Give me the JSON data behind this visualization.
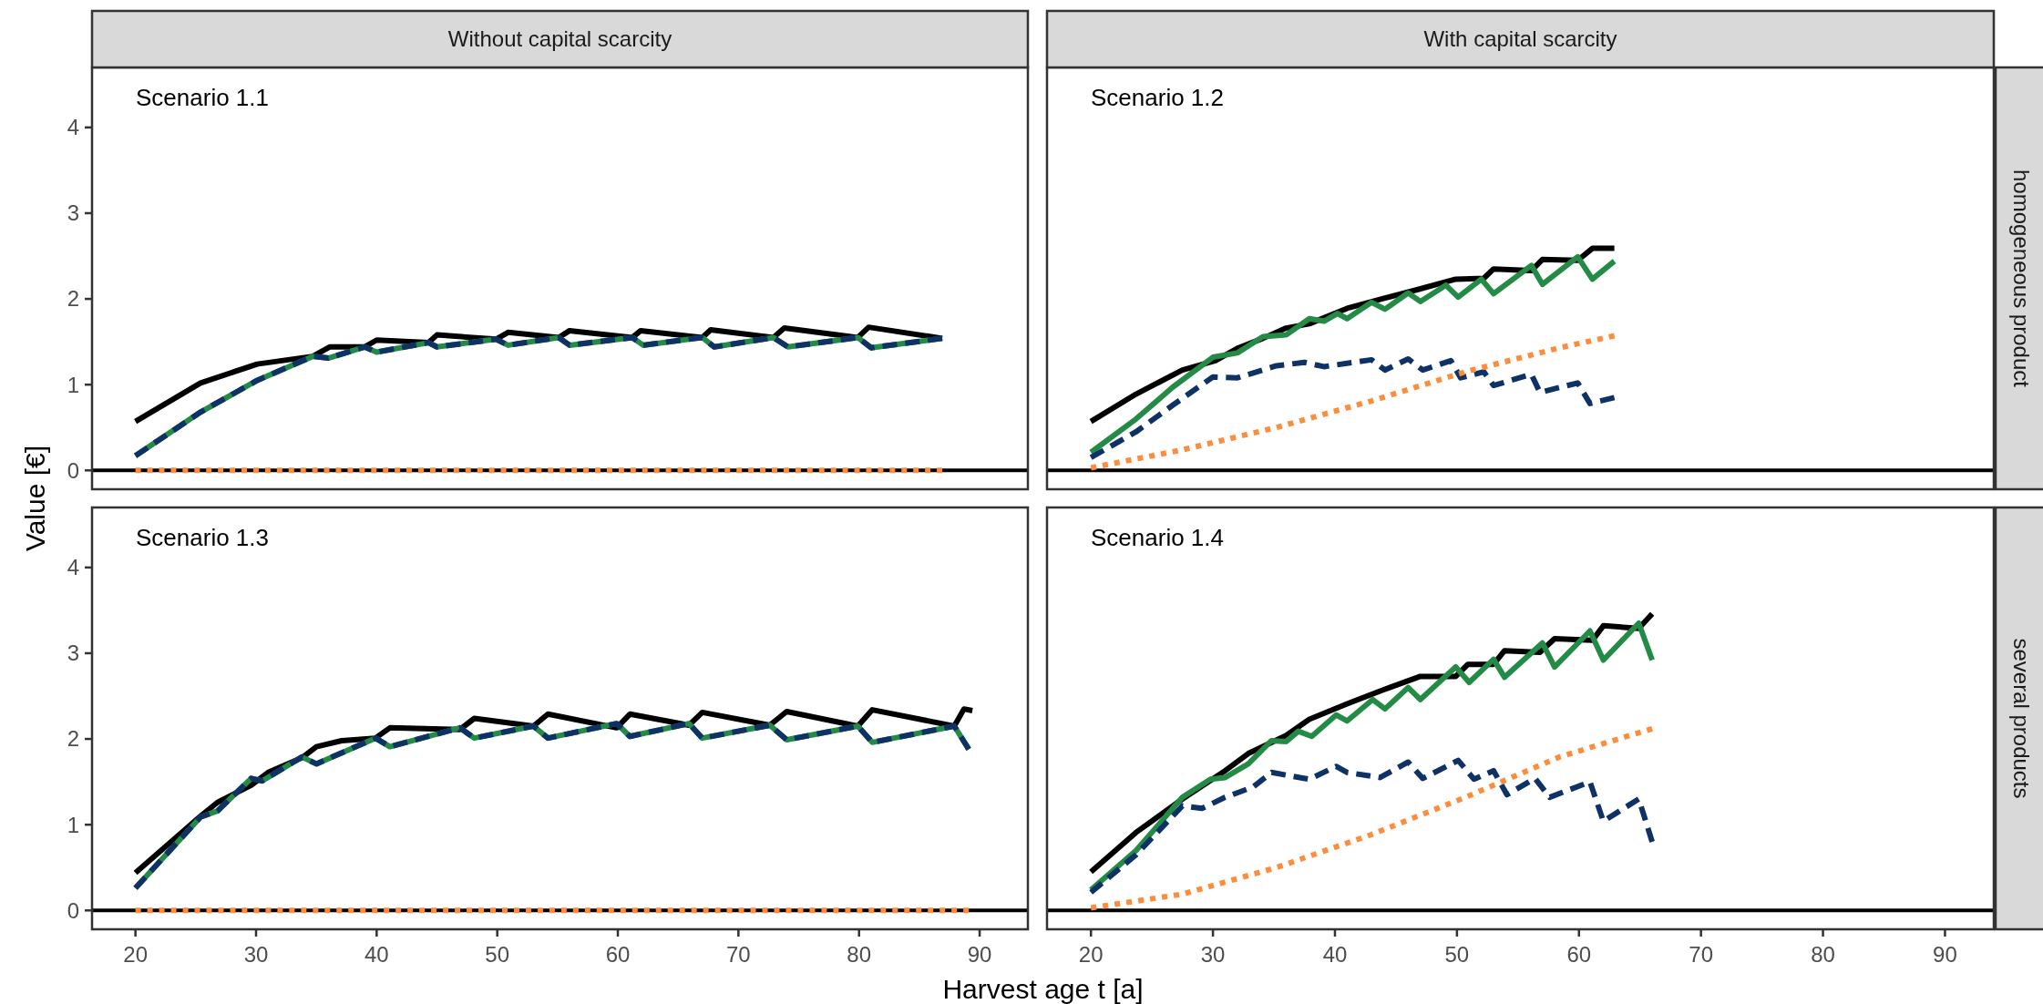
{
  "chart_data": [
    {
      "type": "line",
      "title": "Without capital scarcity",
      "ylabel": "Value [€]",
      "annotations": [
        "Scenario 1.1"
      ],
      "xlim": [
        16.4,
        94
      ],
      "ylim": [
        -0.22,
        4.7
      ],
      "yticks": [
        0,
        1,
        2,
        3,
        4
      ],
      "tick_labels": "y",
      "ref_lines": [
        {
          "axis": "y",
          "value": 0,
          "color": "#000000"
        }
      ],
      "series": [
        {
          "color": "#000000",
          "line_style": "solid",
          "x": [
            20,
            25.4,
            30.1,
            34.7,
            36.1,
            39.0,
            40.0,
            44.3,
            45.0,
            49.9,
            50.9,
            55.1,
            56.0,
            61.2,
            61.9,
            67.0,
            67.7,
            72.9,
            73.8,
            79.9,
            80.8,
            86.9
          ],
          "values": [
            0.57,
            1.02,
            1.24,
            1.33,
            1.44,
            1.44,
            1.52,
            1.49,
            1.58,
            1.53,
            1.61,
            1.55,
            1.63,
            1.55,
            1.63,
            1.55,
            1.64,
            1.55,
            1.66,
            1.55,
            1.67,
            1.54
          ]
        },
        {
          "color": "#238b45",
          "line_style": "solid",
          "x": [
            20,
            25.4,
            30.1,
            34.7,
            36.0,
            39.0,
            40.0,
            44.3,
            45.0,
            49.9,
            50.9,
            55.1,
            56.0,
            61.2,
            62.1,
            67.0,
            68.0,
            72.9,
            74.1,
            79.9,
            81.0,
            86.9
          ],
          "values": [
            0.17,
            0.68,
            1.05,
            1.33,
            1.31,
            1.44,
            1.38,
            1.49,
            1.44,
            1.53,
            1.46,
            1.55,
            1.46,
            1.55,
            1.46,
            1.55,
            1.44,
            1.55,
            1.44,
            1.55,
            1.43,
            1.54
          ]
        },
        {
          "color": "#0e3166",
          "line_style": "dashed",
          "x": [
            20,
            25.4,
            30.1,
            34.7,
            36.0,
            39.0,
            40.0,
            44.3,
            45.0,
            49.9,
            50.9,
            55.1,
            56.0,
            61.2,
            62.1,
            67.0,
            68.0,
            72.9,
            74.1,
            79.9,
            81.0,
            86.9
          ],
          "values": [
            0.17,
            0.68,
            1.05,
            1.33,
            1.31,
            1.44,
            1.38,
            1.49,
            1.44,
            1.53,
            1.46,
            1.55,
            1.46,
            1.55,
            1.46,
            1.55,
            1.44,
            1.55,
            1.44,
            1.55,
            1.43,
            1.54
          ]
        },
        {
          "color": "#fd8d3c",
          "line_style": "dotted",
          "x": [
            20,
            86.9
          ],
          "values": [
            0,
            0
          ]
        }
      ]
    },
    {
      "type": "line",
      "title": "With capital scarcity",
      "y2label": "homogeneous product",
      "annotations": [
        "Scenario 1.2"
      ],
      "xlim": [
        16.4,
        94
      ],
      "ylim": [
        -0.22,
        4.7
      ],
      "tick_labels": false,
      "ref_lines": [
        {
          "axis": "y",
          "value": 0,
          "color": "#000000"
        }
      ],
      "series": [
        {
          "color": "#000000",
          "line_style": "solid",
          "x": [
            20,
            23.7,
            27.5,
            30.2,
            32.1,
            34.1,
            36,
            37.9,
            41,
            44.1,
            46.8,
            49.9,
            52.2,
            53,
            56.1,
            57,
            59.9,
            61.1,
            62.9
          ],
          "values": [
            0.57,
            0.89,
            1.17,
            1.28,
            1.43,
            1.54,
            1.66,
            1.71,
            1.89,
            2.01,
            2.11,
            2.23,
            2.24,
            2.35,
            2.33,
            2.46,
            2.45,
            2.59,
            2.59
          ]
        },
        {
          "color": "#238b45",
          "line_style": "solid",
          "x": [
            20,
            23.7,
            26.7,
            30,
            32,
            34.1,
            36,
            37.9,
            39.1,
            40.2,
            41,
            43,
            44.1,
            46,
            47,
            49.1,
            50.1,
            52,
            53,
            56.1,
            57,
            59.9,
            61.1,
            62.9
          ],
          "values": [
            0.21,
            0.6,
            0.97,
            1.32,
            1.37,
            1.56,
            1.58,
            1.77,
            1.74,
            1.83,
            1.77,
            1.96,
            1.88,
            2.07,
            1.97,
            2.16,
            2.02,
            2.23,
            2.06,
            2.39,
            2.17,
            2.49,
            2.23,
            2.44
          ]
        },
        {
          "color": "#0e3166",
          "line_style": "dashed",
          "x": [
            20,
            23.7,
            26.7,
            30,
            32,
            35.2,
            37.5,
            39.1,
            43,
            44.1,
            46,
            47.2,
            49.5,
            50.3,
            52.2,
            53,
            56.1,
            56.8,
            59.9,
            60.9,
            62.9
          ],
          "values": [
            0.15,
            0.45,
            0.76,
            1.09,
            1.08,
            1.22,
            1.26,
            1.21,
            1.29,
            1.17,
            1.3,
            1.17,
            1.28,
            1.08,
            1.15,
            0.99,
            1.12,
            0.91,
            1.02,
            0.78,
            0.85
          ]
        },
        {
          "color": "#fd8d3c",
          "line_style": "dotted",
          "x": [
            20,
            27.5,
            35.2,
            43,
            50.7,
            58.4,
            62.9
          ],
          "values": [
            0.03,
            0.24,
            0.5,
            0.81,
            1.15,
            1.43,
            1.57
          ]
        }
      ]
    },
    {
      "type": "line",
      "xlabel": "Harvest age t [a]",
      "annotations": [
        "Scenario 1.3"
      ],
      "xlim": [
        16.4,
        94
      ],
      "xticks": [
        20,
        30,
        40,
        50,
        60,
        70,
        80,
        90
      ],
      "ylim": [
        -0.22,
        4.7
      ],
      "yticks": [
        0,
        1,
        2,
        3,
        4
      ],
      "ref_lines": [
        {
          "axis": "y",
          "value": 0,
          "color": "#000000"
        }
      ],
      "series": [
        {
          "color": "#000000",
          "line_style": "solid",
          "x": [
            20,
            25.4,
            26.8,
            29.6,
            31,
            33.8,
            35,
            37.1,
            39.9,
            41.1,
            46.9,
            48.1,
            53,
            54.2,
            59.9,
            61,
            65.9,
            67,
            72.6,
            74,
            79.9,
            81.1,
            87.9,
            88.7,
            89.4
          ],
          "values": [
            0.44,
            1.1,
            1.26,
            1.46,
            1.61,
            1.78,
            1.91,
            1.98,
            2.01,
            2.13,
            2.11,
            2.24,
            2.15,
            2.29,
            2.13,
            2.29,
            2.16,
            2.31,
            2.16,
            2.32,
            2.15,
            2.34,
            2.15,
            2.35,
            2.33
          ]
        },
        {
          "color": "#238b45",
          "line_style": "solid",
          "x": [
            20,
            25.4,
            26.8,
            29.6,
            30.5,
            33.8,
            35,
            39.9,
            41.1,
            46.9,
            48.1,
            53,
            54.2,
            59.9,
            61,
            65.9,
            67,
            72.6,
            74,
            79.9,
            81.1,
            87.9,
            89.1
          ],
          "values": [
            0.26,
            1.09,
            1.16,
            1.54,
            1.51,
            1.79,
            1.71,
            2.01,
            1.91,
            2.13,
            2.01,
            2.15,
            2.01,
            2.18,
            2.03,
            2.18,
            2.01,
            2.16,
            1.99,
            2.15,
            1.96,
            2.15,
            1.88
          ]
        },
        {
          "color": "#0e3166",
          "line_style": "dashed",
          "x": [
            20,
            25.4,
            26.8,
            29.6,
            30.5,
            33.8,
            35,
            39.9,
            41.1,
            46.9,
            48.1,
            53,
            54.2,
            59.9,
            61,
            65.9,
            67,
            72.6,
            74,
            79.9,
            81.1,
            87.9,
            89.1
          ],
          "values": [
            0.26,
            1.09,
            1.16,
            1.54,
            1.51,
            1.79,
            1.71,
            2.01,
            1.91,
            2.13,
            2.01,
            2.15,
            2.01,
            2.18,
            2.03,
            2.18,
            2.01,
            2.16,
            1.99,
            2.15,
            1.96,
            2.15,
            1.88
          ]
        },
        {
          "color": "#fd8d3c",
          "line_style": "dotted",
          "x": [
            20,
            89.1
          ],
          "values": [
            0,
            0
          ]
        }
      ]
    },
    {
      "type": "line",
      "y2label": "several products",
      "annotations": [
        "Scenario 1.4"
      ],
      "xlim": [
        16.4,
        94
      ],
      "xticks": [
        20,
        30,
        40,
        50,
        60,
        70,
        80,
        90
      ],
      "ylim": [
        -0.22,
        4.7
      ],
      "tick_labels": "x",
      "ref_lines": [
        {
          "axis": "y",
          "value": 0,
          "color": "#000000"
        }
      ],
      "series": [
        {
          "color": "#000000",
          "line_style": "solid",
          "x": [
            20,
            23.7,
            27.5,
            31,
            32.9,
            36,
            37.9,
            41,
            43.9,
            47,
            49.9,
            50.9,
            53,
            53.9,
            56.8,
            58,
            61.1,
            62,
            64.9,
            66
          ],
          "values": [
            0.45,
            0.91,
            1.3,
            1.63,
            1.83,
            2.04,
            2.23,
            2.41,
            2.57,
            2.73,
            2.73,
            2.87,
            2.87,
            3.03,
            3.01,
            3.17,
            3.15,
            3.32,
            3.29,
            3.46
          ]
        },
        {
          "color": "#238b45",
          "line_style": "solid",
          "x": [
            20,
            23.7,
            27.5,
            29.8,
            31,
            32.9,
            34.8,
            36,
            37,
            38.1,
            40.1,
            41,
            43.1,
            44.1,
            46,
            47,
            49.9,
            51,
            53,
            53.9,
            57,
            58,
            60.9,
            62,
            64.9,
            66
          ],
          "values": [
            0.24,
            0.7,
            1.32,
            1.53,
            1.55,
            1.71,
            1.98,
            1.97,
            2.09,
            2.03,
            2.28,
            2.21,
            2.46,
            2.35,
            2.6,
            2.46,
            2.84,
            2.66,
            2.93,
            2.72,
            3.12,
            2.84,
            3.26,
            2.92,
            3.35,
            2.92
          ]
        },
        {
          "color": "#0e3166",
          "line_style": "dashed",
          "x": [
            20,
            23.7,
            27.5,
            29.1,
            31,
            33.3,
            34.8,
            37.9,
            40.1,
            41,
            43.7,
            46,
            47.2,
            50.1,
            51.4,
            53,
            54.1,
            56.4,
            57.6,
            60.9,
            62,
            64.9,
            66
          ],
          "values": [
            0.21,
            0.65,
            1.22,
            1.19,
            1.32,
            1.44,
            1.61,
            1.53,
            1.68,
            1.61,
            1.55,
            1.73,
            1.54,
            1.75,
            1.53,
            1.63,
            1.35,
            1.54,
            1.32,
            1.5,
            1.04,
            1.3,
            0.8
          ]
        },
        {
          "color": "#fd8d3c",
          "line_style": "dotted",
          "x": [
            20,
            27.5,
            35.2,
            42.9,
            50.7,
            58.4,
            66
          ],
          "values": [
            0.03,
            0.19,
            0.5,
            0.88,
            1.32,
            1.79,
            2.12
          ]
        }
      ]
    }
  ]
}
